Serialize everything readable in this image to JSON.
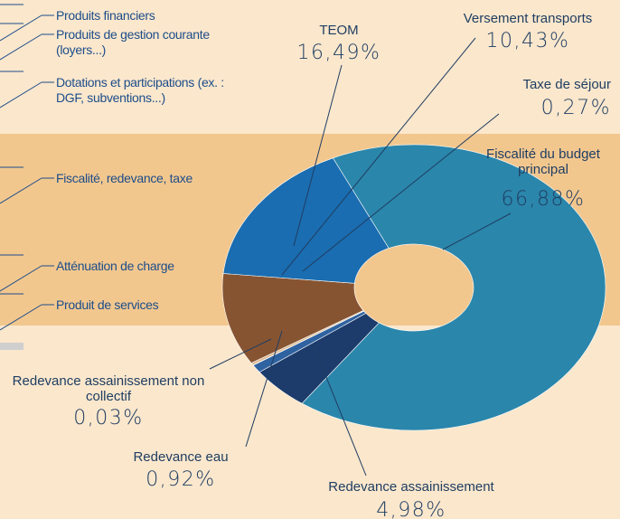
{
  "chart_data": {
    "type": "pie",
    "categories": [
      "Fiscalité du budget principal",
      "Redevance assainissement",
      "Redevance eau",
      "Redevance assainissement non collectif",
      "Taxe de séjour",
      "Versement transports",
      "TEOM"
    ],
    "values": [
      66.88,
      4.98,
      0.92,
      0.03,
      0.27,
      10.43,
      16.49
    ],
    "value_labels": [
      "66,88%",
      "4,98%",
      "0,92%",
      "0,03%",
      "0,27%",
      "10,43%",
      "16,49%"
    ],
    "colors": [
      "#2b86ab",
      "#1d3c6c",
      "#2f62a0",
      "#c79a6b",
      "#dcbb92",
      "#875432",
      "#1a6db0"
    ],
    "annotations": [
      "Produits financiers",
      "Produits de gestion courante (loyers...)",
      "Dotations et participations (ex. : DGF, subventions...)",
      "Fiscalité, redevance, taxe",
      "Atténuation de charge",
      "Produit de services"
    ]
  }
}
